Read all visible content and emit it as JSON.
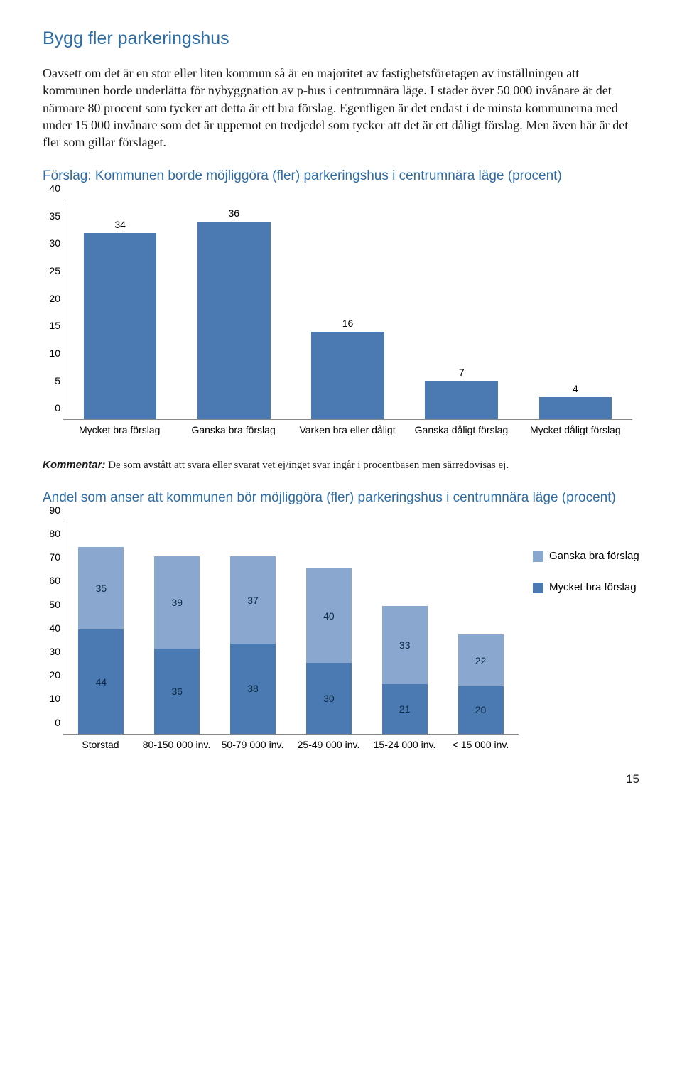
{
  "title": "Bygg fler parkeringshus",
  "paragraph": "Oavsett om det är en stor eller liten kommun så är en majoritet av fastighetsföretagen av inställningen att kommunen borde underlätta för nybyggnation av p-hus i centrumnära läge. I städer över 50 000 invånare är det närmare 80 procent som tycker att detta är ett bra förslag. Egentligen är det endast i de minsta kommunerna med under 15 000 invånare som det är uppemot en tredjedel som tycker att det är ett dåligt förslag. Men även här är det fler som gillar förslaget.",
  "chart1": {
    "heading": "Förslag: Kommunen borde möjliggöra (fler) parkeringshus i centrumnära läge (procent)",
    "type": "bar",
    "categories": [
      "Mycket bra förslag",
      "Ganska bra förslag",
      "Varken bra eller dåligt",
      "Ganska dåligt förslag",
      "Mycket dåligt förslag"
    ],
    "values": [
      34,
      36,
      16,
      7,
      4
    ],
    "bar_color": "#4a7ab1",
    "ymax": 40,
    "ytick_step": 5,
    "axis_color": "#888888",
    "label_color": "#000000",
    "value_fontsize": 14,
    "axis_fontsize": 14
  },
  "kommentar_label": "Kommentar:",
  "kommentar_text": " De som avstått att svara eller svarat vet ej/inget svar ingår i procentbasen men särredovisas ej.",
  "chart2": {
    "heading": "Andel som anser att kommunen bör möjliggöra (fler) parkeringshus i centrumnära läge (procent)",
    "type": "stacked-bar",
    "categories": [
      "Storstad",
      "80-150 000 inv.",
      "50-79 000 inv.",
      "25-49 000 inv.",
      "15-24 000 inv.",
      "< 15 000 inv."
    ],
    "series": [
      {
        "name": "Mycket bra förslag",
        "color": "#4a7ab1",
        "values": [
          44,
          36,
          38,
          30,
          21,
          20
        ]
      },
      {
        "name": "Ganska bra förslag",
        "color": "#8aa8cf",
        "values": [
          35,
          39,
          37,
          40,
          33,
          22
        ]
      }
    ],
    "ymax": 90,
    "ytick_step": 10,
    "axis_color": "#888888",
    "label_color": "#000000",
    "axis_fontsize": 14,
    "legend_order": [
      "Ganska bra förslag",
      "Mycket bra förslag"
    ]
  },
  "page_number": "15"
}
